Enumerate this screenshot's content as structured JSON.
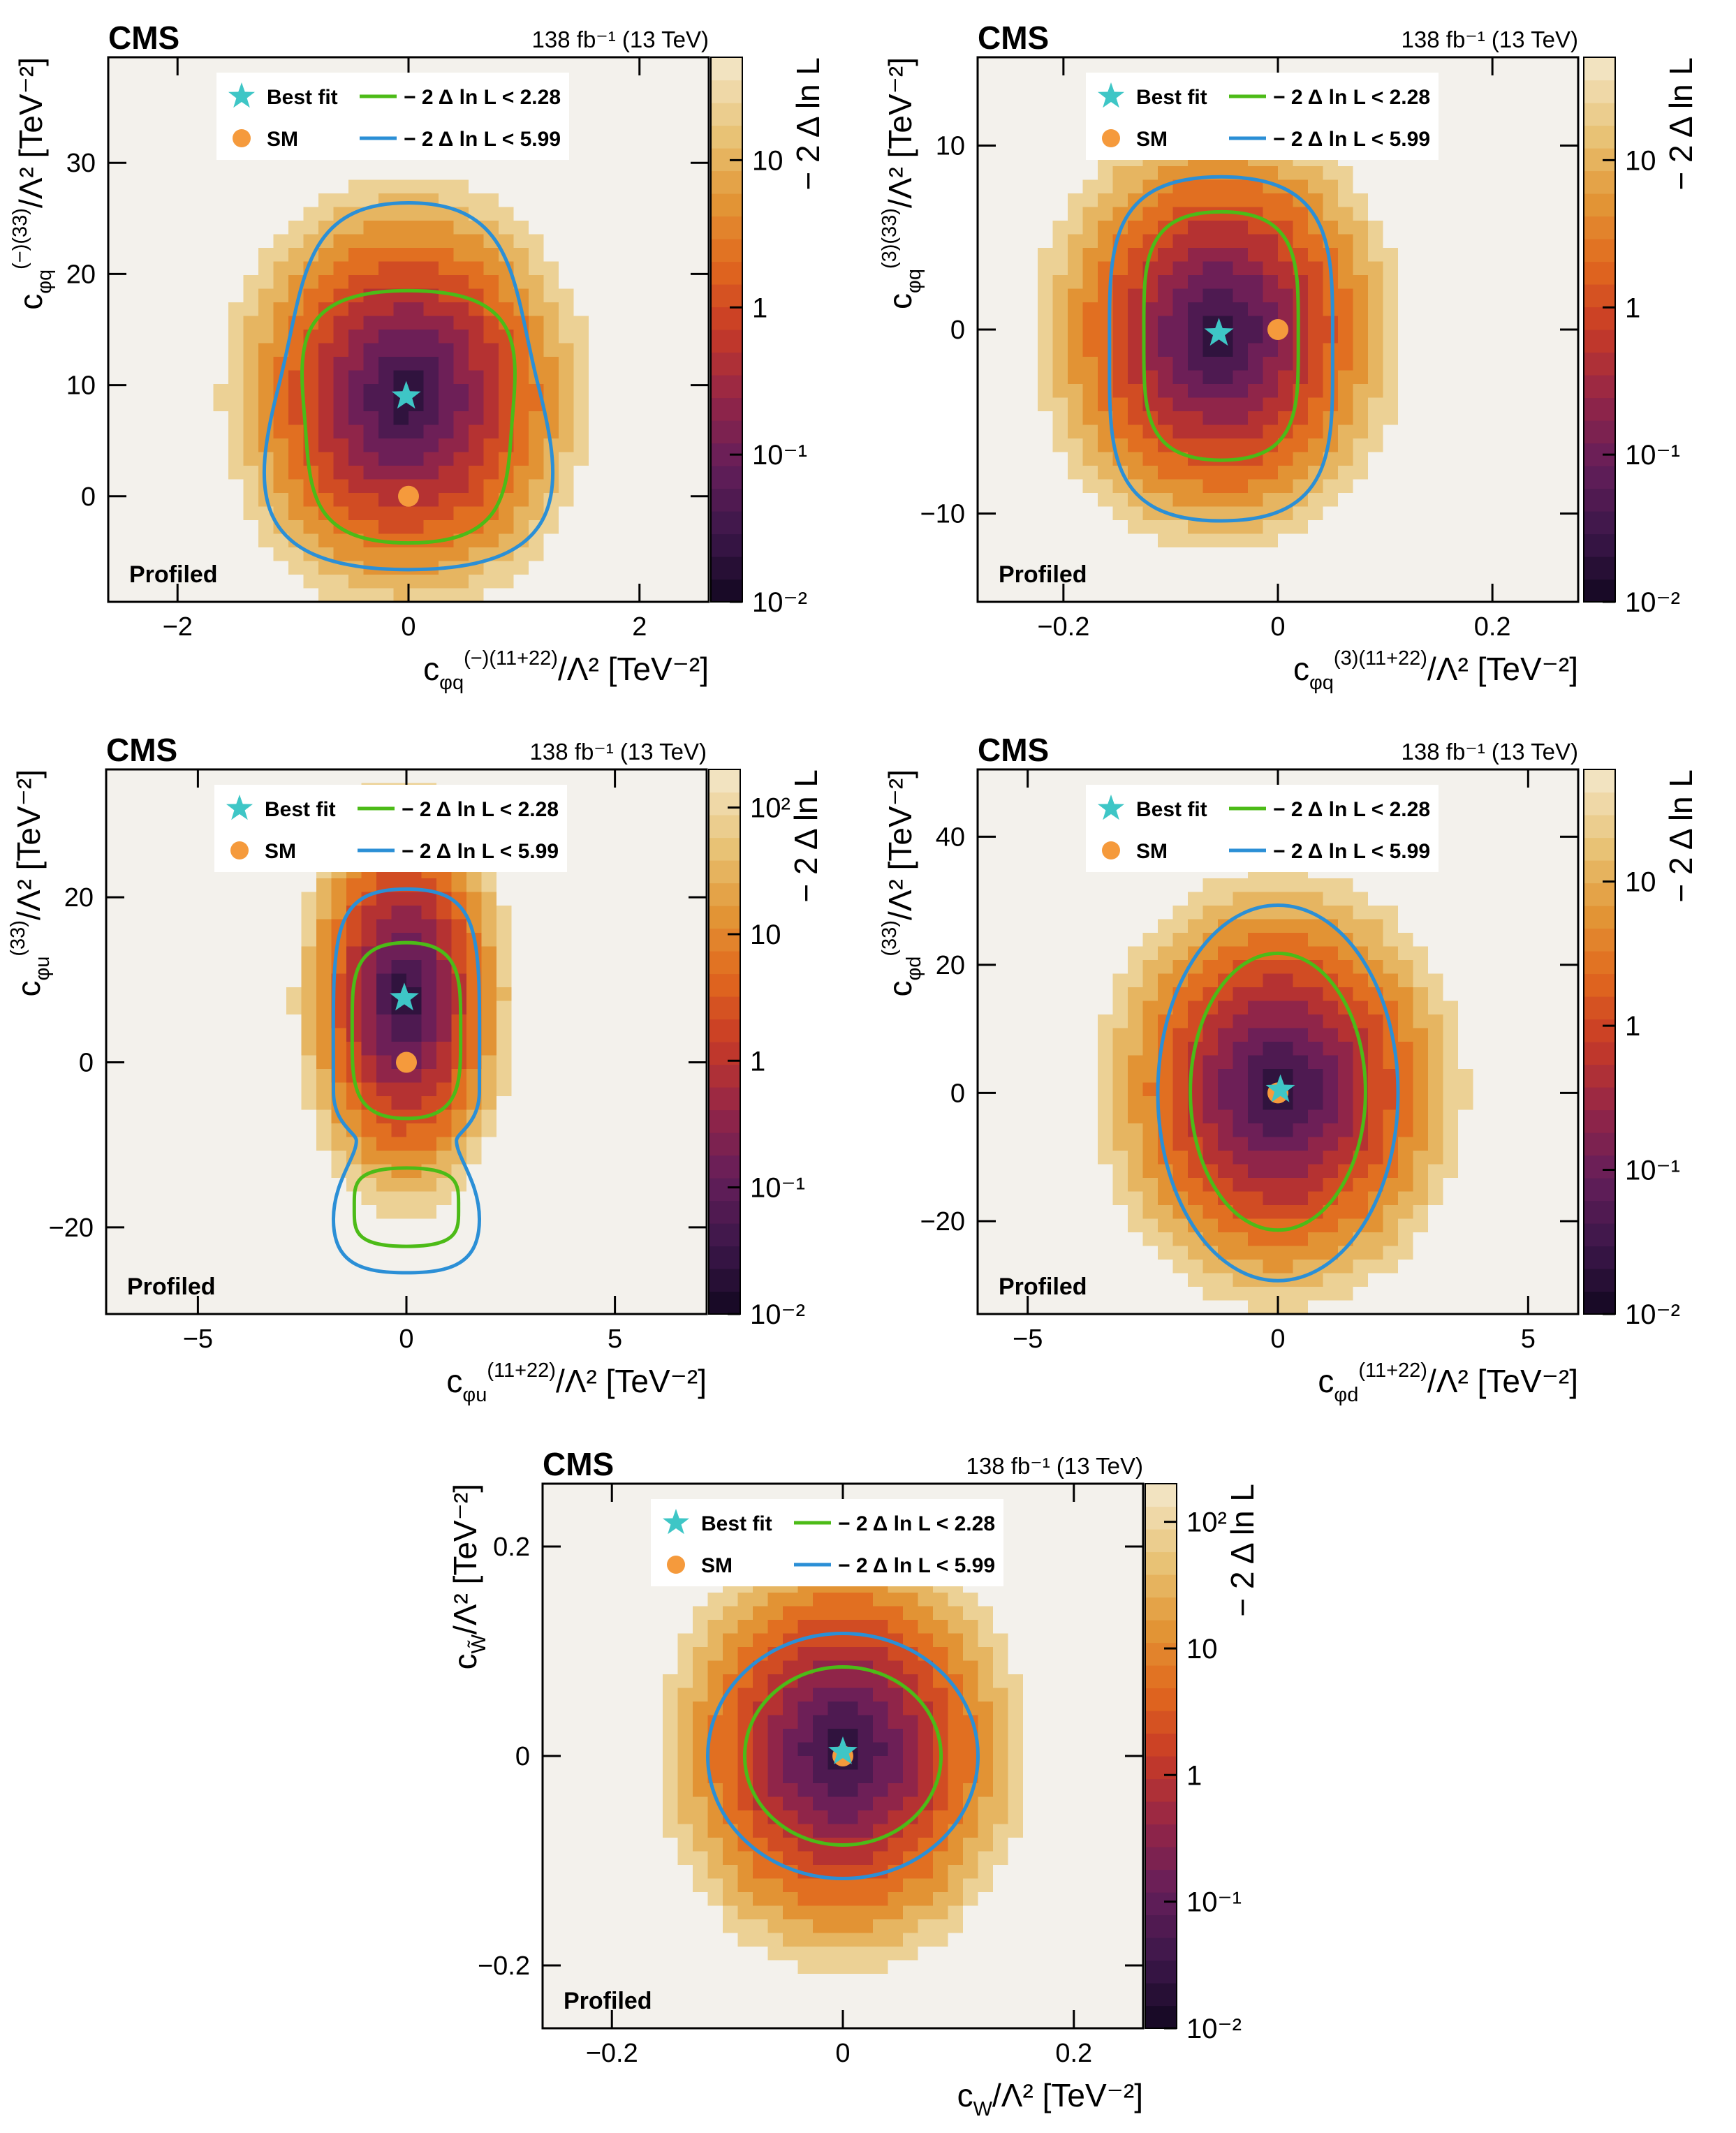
{
  "figure": {
    "experiment_label": "CMS",
    "lumi_label": "138 fb⁻¹ (13 TeV)",
    "legend": {
      "best_fit": "Best fit",
      "sm": "SM",
      "contour_68": "− 2  Δ ln L < 2.28",
      "contour_95": "− 2  Δ ln L < 5.99"
    },
    "profiled_label": "Profiled",
    "colorbar_title": "− 2 Δ ln L",
    "colors": {
      "best_fit_star": "#3ec6c6",
      "sm_point": "#f59a3c",
      "contour_68": "#4cbb17",
      "contour_95": "#2b8fd6",
      "frame": "#000000",
      "empty_cell": "#f3f1ec"
    }
  },
  "chart_data": [
    {
      "type": "heatmap",
      "panel": "top-left",
      "xlabel": "cφq(−)(11+22)/Λ² [TeV⁻²]",
      "ylabel": "cφq(−)(33)/Λ² [TeV⁻²]",
      "xlabel_main": "c",
      "xlabel_sub": "φq",
      "xlabel_sup": "(−)(11+22)",
      "xlabel_tail": "/Λ² [TeV⁻²]",
      "ylabel_main": "c",
      "ylabel_sub": "φq",
      "ylabel_sup": "(−)(33)",
      "ylabel_tail": "/Λ² [TeV⁻²]",
      "xlim": [
        -2.6,
        2.6
      ],
      "ylim": [
        -9.5,
        39.5
      ],
      "xticks": [
        -2,
        0,
        2
      ],
      "xtick_labels": [
        "−2",
        "0",
        "2"
      ],
      "yticks": [
        0,
        10,
        20,
        30
      ],
      "ytick_labels": [
        "0",
        "10",
        "20",
        "30"
      ],
      "best_fit": [
        -0.02,
        9.0
      ],
      "sm": [
        0,
        0
      ],
      "contour_68": {
        "center": [
          0.0,
          7.6
        ],
        "half_width_top": 0.95,
        "half_width_bottom": 0.85,
        "top": 18.5,
        "bottom": -4.2
      },
      "contour_95": {
        "center": [
          0.0,
          10.0
        ],
        "half_width_top": 0.9,
        "half_width_bottom": 1.35,
        "top": 26.4,
        "bottom": -6.6
      },
      "colorbar": {
        "range": [
          0.01,
          50
        ],
        "tick_values": [
          0.01,
          0.1,
          1,
          10
        ],
        "tick_labels": [
          "10⁻²",
          "10⁻¹",
          "1",
          "10"
        ]
      }
    },
    {
      "type": "heatmap",
      "panel": "top-right",
      "xlabel": "cφq(3)(11+22)/Λ² [TeV⁻²]",
      "ylabel": "cφq(3)(33)/Λ² [TeV⁻²]",
      "xlabel_main": "c",
      "xlabel_sub": "φq",
      "xlabel_sup": "(3)(11+22)",
      "xlabel_tail": "/Λ² [TeV⁻²]",
      "ylabel_main": "c",
      "ylabel_sub": "φq",
      "ylabel_sup": "(3)(33)",
      "ylabel_tail": "/Λ² [TeV⁻²]",
      "xlim": [
        -0.28,
        0.28
      ],
      "ylim": [
        -14.8,
        14.8
      ],
      "xticks": [
        -0.2,
        0,
        0.2
      ],
      "xtick_labels": [
        "−0.2",
        "0",
        "0.2"
      ],
      "yticks": [
        -10,
        0,
        10
      ],
      "ytick_labels": [
        "−10",
        "0",
        "10"
      ],
      "best_fit": [
        -0.055,
        -0.2
      ],
      "sm": [
        0,
        0
      ],
      "contour_68": {
        "center": [
          -0.053,
          -0.4
        ],
        "half_width_top": 0.072,
        "half_width_bottom": 0.072,
        "top": 6.4,
        "bottom": -7.1
      },
      "contour_95": {
        "center": [
          -0.053,
          -1.1
        ],
        "half_width_top": 0.104,
        "half_width_bottom": 0.104,
        "top": 8.3,
        "bottom": -10.4
      },
      "colorbar": {
        "range": [
          0.01,
          50
        ],
        "tick_values": [
          0.01,
          0.1,
          1,
          10
        ],
        "tick_labels": [
          "10⁻²",
          "10⁻¹",
          "1",
          "10"
        ]
      }
    },
    {
      "type": "heatmap",
      "panel": "middle-left",
      "xlabel": "cφu(11+22)/Λ² [TeV⁻²]",
      "ylabel": "cφu(33)/Λ² [TeV⁻²]",
      "xlabel_main": "c",
      "xlabel_sub": "φu",
      "xlabel_sup": "(11+22)",
      "xlabel_tail": "/Λ² [TeV⁻²]",
      "ylabel_main": "c",
      "ylabel_sub": "φu",
      "ylabel_sup": "(33)",
      "ylabel_tail": "/Λ² [TeV⁻²]",
      "xlim": [
        -7.2,
        7.2
      ],
      "ylim": [
        -30.5,
        35.5
      ],
      "xticks": [
        -5,
        0,
        5
      ],
      "xtick_labels": [
        "−5",
        "0",
        "5"
      ],
      "yticks": [
        -20,
        0,
        20
      ],
      "ytick_labels": [
        "−20",
        "0",
        "20"
      ],
      "best_fit": [
        -0.05,
        7.8
      ],
      "sm": [
        0,
        0
      ],
      "contour_68_upper": {
        "center": [
          0.0,
          3.6
        ],
        "half_width": 1.3,
        "top": 14.5,
        "bottom": -6.8
      },
      "contour_68_lower": {
        "center": [
          0.0,
          -17.5
        ],
        "half_width": 1.25,
        "top": -12.8,
        "bottom": -22.3
      },
      "contour_95": {
        "half_width": 1.75,
        "top": 21.0,
        "bottom": -25.5,
        "waist_y": -9.5,
        "waist_half_width": 1.2
      },
      "colorbar": {
        "range": [
          0.01,
          200
        ],
        "tick_values": [
          0.01,
          0.1,
          1,
          10,
          100
        ],
        "tick_labels": [
          "10⁻²",
          "10⁻¹",
          "1",
          "10",
          "10²"
        ]
      }
    },
    {
      "type": "heatmap",
      "panel": "middle-right",
      "xlabel": "cφd(11+22)/Λ² [TeV⁻²]",
      "ylabel": "cφd(33)/Λ² [TeV⁻²]",
      "xlabel_main": "c",
      "xlabel_sub": "φd",
      "xlabel_sup": "(11+22)",
      "xlabel_tail": "/Λ² [TeV⁻²]",
      "ylabel_main": "c",
      "ylabel_sub": "φd",
      "ylabel_sup": "(33)",
      "ylabel_tail": "/Λ² [TeV⁻²]",
      "xlim": [
        -6.0,
        6.0
      ],
      "ylim": [
        -34.5,
        50.5
      ],
      "xticks": [
        -5,
        0,
        5
      ],
      "xtick_labels": [
        "−5",
        "0",
        "5"
      ],
      "yticks": [
        -20,
        0,
        20,
        40
      ],
      "ytick_labels": [
        "−20",
        "0",
        "20",
        "40"
      ],
      "best_fit": [
        0.05,
        0.5
      ],
      "sm": [
        0,
        0
      ],
      "contour_68": {
        "center": [
          0.0,
          0.2
        ],
        "rx": 1.75,
        "ry": 21.6
      },
      "contour_95": {
        "center": [
          0.0,
          0.0
        ],
        "rx": 2.4,
        "ry": 29.3
      },
      "colorbar": {
        "range": [
          0.01,
          60
        ],
        "tick_values": [
          0.01,
          0.1,
          1,
          10
        ],
        "tick_labels": [
          "10⁻²",
          "10⁻¹",
          "1",
          "10"
        ]
      }
    },
    {
      "type": "heatmap",
      "panel": "bottom",
      "xlabel": "cW/Λ² [TeV⁻²]",
      "ylabel": "cW̃/Λ² [TeV⁻²]",
      "xlabel_main": "c",
      "xlabel_sub": "W",
      "xlabel_sup": "",
      "xlabel_tail": "/Λ² [TeV⁻²]",
      "ylabel_main": "c",
      "ylabel_sub": "W̃",
      "ylabel_sup": "",
      "ylabel_tail": "/Λ² [TeV⁻²]",
      "xlim": [
        -0.26,
        0.26
      ],
      "ylim": [
        -0.26,
        0.26
      ],
      "xticks": [
        -0.2,
        0,
        0.2
      ],
      "xtick_labels": [
        "−0.2",
        "0",
        "0.2"
      ],
      "yticks": [
        -0.2,
        0,
        0.2
      ],
      "ytick_labels": [
        "−0.2",
        "0",
        "0.2"
      ],
      "best_fit": [
        0.0,
        0.004
      ],
      "sm": [
        0,
        0
      ],
      "contour_68": {
        "center": [
          0.0,
          0.0
        ],
        "rx": 0.085,
        "ry": 0.085
      },
      "contour_95": {
        "center": [
          0.0,
          0.0
        ],
        "rx": 0.117,
        "ry": 0.117
      },
      "colorbar": {
        "range": [
          0.01,
          200
        ],
        "tick_values": [
          0.01,
          0.1,
          1,
          10,
          100
        ],
        "tick_labels": [
          "10⁻²",
          "10⁻¹",
          "1",
          "10",
          "10²"
        ]
      }
    }
  ]
}
